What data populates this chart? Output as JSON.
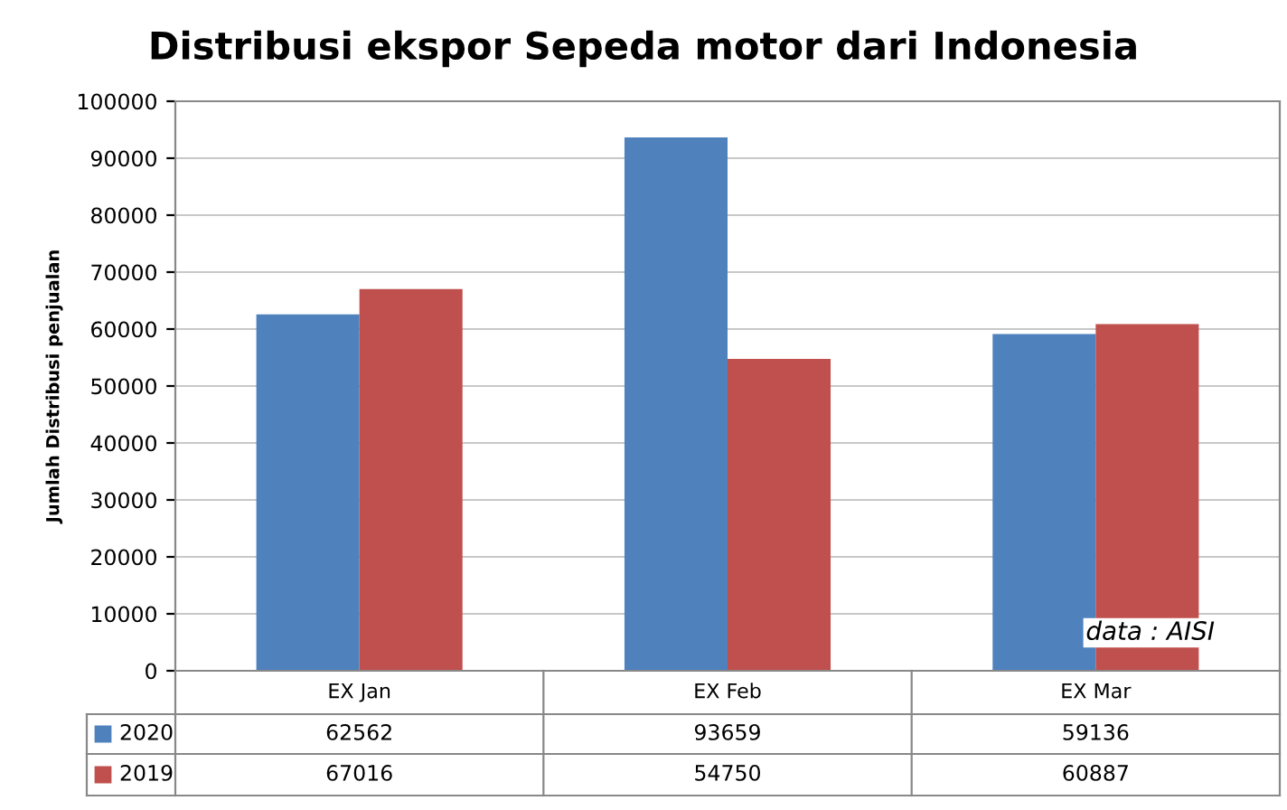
{
  "chart_data": {
    "type": "bar",
    "title": "Distribusi ekspor Sepeda motor dari Indonesia",
    "ylabel": "Jumlah Distribusi penjualan",
    "categories": [
      "EX Jan",
      "EX Feb",
      "EX Mar"
    ],
    "series": [
      {
        "name": "2020",
        "color": "#4f81bd",
        "values": [
          62562,
          93659,
          59136
        ]
      },
      {
        "name": "2019",
        "color": "#c0504d",
        "values": [
          67016,
          54750,
          60887
        ]
      }
    ],
    "ylim": [
      0,
      100000
    ],
    "yticks": [
      0,
      10000,
      20000,
      30000,
      40000,
      50000,
      60000,
      70000,
      80000,
      90000,
      100000
    ],
    "grid": "y",
    "data_labels": true,
    "legend": "bottom left",
    "annotations": [
      "data : AISI"
    ]
  }
}
